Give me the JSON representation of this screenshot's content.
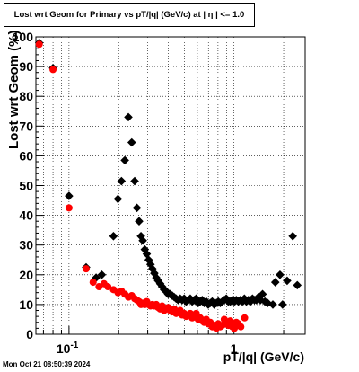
{
  "header": {
    "title": "Lost wrt Geom for Primary vs pT/|q| (GeV/c) at |  η  | <= 1.0",
    "timestamp": "Mon Oct 21 08:50:39 2024"
  },
  "chart_data": {
    "type": "scatter",
    "title": "Lost wrt Geom for Primary vs pT/|q| (GeV/c) at |  η  | <= 1.0",
    "xlabel": "pT/|q| (GeV/c)",
    "ylabel": "Lost wrt Geom (%)",
    "xscale": "log",
    "xlim": [
      0.063,
      2.7
    ],
    "ylim": [
      0,
      100
    ],
    "grid": true,
    "x_tick_labels": [
      {
        "value": 0.1,
        "label": "10^-1"
      },
      {
        "value": 1,
        "label": "1"
      }
    ],
    "y_ticks": [
      0,
      10,
      20,
      30,
      40,
      50,
      60,
      70,
      80,
      90,
      100
    ],
    "series": [
      {
        "color": "#000000",
        "marker": "diamond",
        "points": [
          {
            "x": 0.066,
            "y": 98
          },
          {
            "x": 0.08,
            "y": 89.5
          },
          {
            "x": 0.1,
            "y": 46.5
          },
          {
            "x": 0.127,
            "y": 22.5
          },
          {
            "x": 0.146,
            "y": 19
          },
          {
            "x": 0.158,
            "y": 20
          },
          {
            "x": 0.186,
            "y": 33
          },
          {
            "x": 0.198,
            "y": 45.5
          },
          {
            "x": 0.208,
            "y": 51.5
          },
          {
            "x": 0.218,
            "y": 58.5
          },
          {
            "x": 0.229,
            "y": 73
          },
          {
            "x": 0.24,
            "y": 64.5
          },
          {
            "x": 0.25,
            "y": 51.5
          },
          {
            "x": 0.258,
            "y": 42.5
          },
          {
            "x": 0.266,
            "y": 38
          },
          {
            "x": 0.273,
            "y": 33
          },
          {
            "x": 0.28,
            "y": 31.5
          },
          {
            "x": 0.288,
            "y": 28.5
          },
          {
            "x": 0.296,
            "y": 27
          },
          {
            "x": 0.304,
            "y": 25
          },
          {
            "x": 0.312,
            "y": 23.5
          },
          {
            "x": 0.32,
            "y": 22
          },
          {
            "x": 0.329,
            "y": 20.5
          },
          {
            "x": 0.338,
            "y": 19
          },
          {
            "x": 0.347,
            "y": 18
          },
          {
            "x": 0.357,
            "y": 17
          },
          {
            "x": 0.367,
            "y": 16
          },
          {
            "x": 0.377,
            "y": 15
          },
          {
            "x": 0.388,
            "y": 14.5
          },
          {
            "x": 0.399,
            "y": 13.5
          },
          {
            "x": 0.41,
            "y": 13.5
          },
          {
            "x": 0.422,
            "y": 13
          },
          {
            "x": 0.434,
            "y": 12.5
          },
          {
            "x": 0.446,
            "y": 12
          },
          {
            "x": 0.459,
            "y": 11.5
          },
          {
            "x": 0.472,
            "y": 12
          },
          {
            "x": 0.485,
            "y": 11.5
          },
          {
            "x": 0.499,
            "y": 12
          },
          {
            "x": 0.513,
            "y": 11
          },
          {
            "x": 0.528,
            "y": 11.5
          },
          {
            "x": 0.543,
            "y": 12
          },
          {
            "x": 0.558,
            "y": 11
          },
          {
            "x": 0.574,
            "y": 11.5
          },
          {
            "x": 0.59,
            "y": 12
          },
          {
            "x": 0.607,
            "y": 10.5
          },
          {
            "x": 0.624,
            "y": 11
          },
          {
            "x": 0.642,
            "y": 11.5
          },
          {
            "x": 0.66,
            "y": 10.5
          },
          {
            "x": 0.679,
            "y": 11
          },
          {
            "x": 0.698,
            "y": 10
          },
          {
            "x": 0.718,
            "y": 10.5
          },
          {
            "x": 0.738,
            "y": 11
          },
          {
            "x": 0.759,
            "y": 10
          },
          {
            "x": 0.781,
            "y": 10.5
          },
          {
            "x": 0.803,
            "y": 11
          },
          {
            "x": 0.826,
            "y": 10.5
          },
          {
            "x": 0.849,
            "y": 11
          },
          {
            "x": 0.873,
            "y": 11.5
          },
          {
            "x": 0.898,
            "y": 12
          },
          {
            "x": 0.924,
            "y": 11
          },
          {
            "x": 0.95,
            "y": 11
          },
          {
            "x": 0.977,
            "y": 11.5
          },
          {
            "x": 1.005,
            "y": 11
          },
          {
            "x": 1.033,
            "y": 11.5
          },
          {
            "x": 1.063,
            "y": 11
          },
          {
            "x": 1.093,
            "y": 11.5
          },
          {
            "x": 1.124,
            "y": 11
          },
          {
            "x": 1.156,
            "y": 12
          },
          {
            "x": 1.189,
            "y": 11
          },
          {
            "x": 1.223,
            "y": 11.5
          },
          {
            "x": 1.258,
            "y": 11
          },
          {
            "x": 1.294,
            "y": 12
          },
          {
            "x": 1.33,
            "y": 11.5
          },
          {
            "x": 1.368,
            "y": 11.5
          },
          {
            "x": 1.407,
            "y": 12.5
          },
          {
            "x": 1.447,
            "y": 11.5
          },
          {
            "x": 1.49,
            "y": 13.5
          },
          {
            "x": 1.54,
            "y": 11
          },
          {
            "x": 1.6,
            "y": 10.5
          },
          {
            "x": 1.72,
            "y": 10
          },
          {
            "x": 1.78,
            "y": 17.5
          },
          {
            "x": 1.9,
            "y": 20
          },
          {
            "x": 1.97,
            "y": 10
          },
          {
            "x": 2.1,
            "y": 18
          },
          {
            "x": 2.27,
            "y": 33
          },
          {
            "x": 2.42,
            "y": 16.5
          }
        ]
      },
      {
        "color": "#ff0000",
        "marker": "circle",
        "points": [
          {
            "x": 0.066,
            "y": 97.5
          },
          {
            "x": 0.08,
            "y": 89
          },
          {
            "x": 0.1,
            "y": 42.5
          },
          {
            "x": 0.127,
            "y": 22
          },
          {
            "x": 0.14,
            "y": 17.5
          },
          {
            "x": 0.152,
            "y": 16
          },
          {
            "x": 0.163,
            "y": 17
          },
          {
            "x": 0.172,
            "y": 16
          },
          {
            "x": 0.186,
            "y": 15
          },
          {
            "x": 0.198,
            "y": 14
          },
          {
            "x": 0.208,
            "y": 14.5
          },
          {
            "x": 0.218,
            "y": 13.5
          },
          {
            "x": 0.229,
            "y": 12.5
          },
          {
            "x": 0.24,
            "y": 13
          },
          {
            "x": 0.25,
            "y": 12
          },
          {
            "x": 0.258,
            "y": 11.5
          },
          {
            "x": 0.266,
            "y": 11
          },
          {
            "x": 0.273,
            "y": 10
          },
          {
            "x": 0.28,
            "y": 10.5
          },
          {
            "x": 0.288,
            "y": 10
          },
          {
            "x": 0.296,
            "y": 11
          },
          {
            "x": 0.304,
            "y": 10
          },
          {
            "x": 0.312,
            "y": 9.5
          },
          {
            "x": 0.32,
            "y": 10
          },
          {
            "x": 0.329,
            "y": 9.5
          },
          {
            "x": 0.338,
            "y": 10
          },
          {
            "x": 0.347,
            "y": 9
          },
          {
            "x": 0.357,
            "y": 8.5
          },
          {
            "x": 0.367,
            "y": 9.5
          },
          {
            "x": 0.377,
            "y": 8
          },
          {
            "x": 0.388,
            "y": 8.5
          },
          {
            "x": 0.399,
            "y": 9
          },
          {
            "x": 0.41,
            "y": 8
          },
          {
            "x": 0.422,
            "y": 7.5
          },
          {
            "x": 0.434,
            "y": 8.5
          },
          {
            "x": 0.446,
            "y": 7
          },
          {
            "x": 0.459,
            "y": 7.5
          },
          {
            "x": 0.472,
            "y": 8
          },
          {
            "x": 0.485,
            "y": 6.5
          },
          {
            "x": 0.499,
            "y": 7
          },
          {
            "x": 0.513,
            "y": 6
          },
          {
            "x": 0.528,
            "y": 6.5
          },
          {
            "x": 0.543,
            "y": 7
          },
          {
            "x": 0.558,
            "y": 5.5
          },
          {
            "x": 0.574,
            "y": 6
          },
          {
            "x": 0.59,
            "y": 7
          },
          {
            "x": 0.607,
            "y": 5
          },
          {
            "x": 0.624,
            "y": 5.5
          },
          {
            "x": 0.642,
            "y": 4.5
          },
          {
            "x": 0.66,
            "y": 4
          },
          {
            "x": 0.679,
            "y": 5
          },
          {
            "x": 0.698,
            "y": 3.5
          },
          {
            "x": 0.718,
            "y": 4
          },
          {
            "x": 0.738,
            "y": 2.5
          },
          {
            "x": 0.759,
            "y": 3
          },
          {
            "x": 0.781,
            "y": 2
          },
          {
            "x": 0.803,
            "y": 3.5
          },
          {
            "x": 0.826,
            "y": 2.5
          },
          {
            "x": 0.849,
            "y": 3
          },
          {
            "x": 0.873,
            "y": 5
          },
          {
            "x": 0.898,
            "y": 4
          },
          {
            "x": 0.924,
            "y": 3
          },
          {
            "x": 0.95,
            "y": 4.5
          },
          {
            "x": 0.977,
            "y": 2.5
          },
          {
            "x": 1.005,
            "y": 2
          },
          {
            "x": 1.033,
            "y": 4
          },
          {
            "x": 1.063,
            "y": 3.5
          },
          {
            "x": 1.1,
            "y": 2.5
          },
          {
            "x": 1.16,
            "y": 5.5
          }
        ]
      }
    ]
  }
}
